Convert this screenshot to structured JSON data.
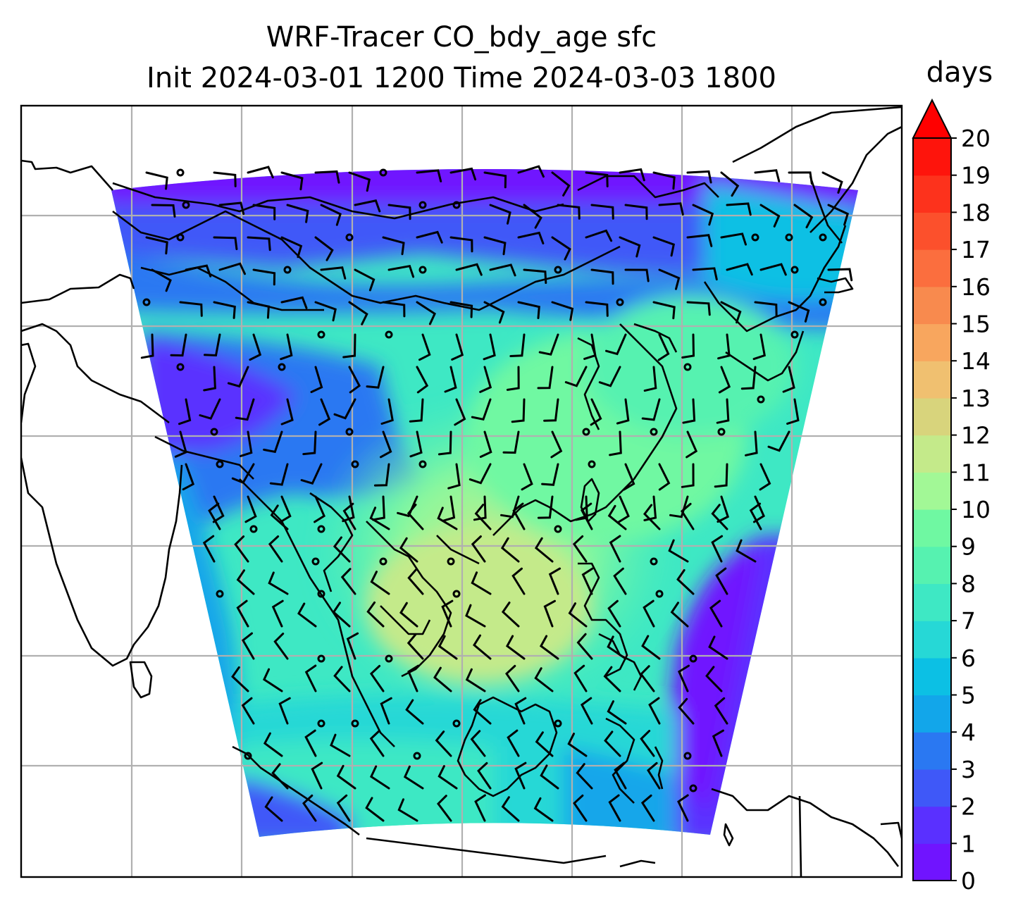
{
  "title": {
    "line1": "WRF-Tracer CO_bdy_age sfc",
    "line2": "Init 2024-03-01 1200 Time 2024-03-03 1800"
  },
  "colorbar": {
    "unit": "days",
    "min": 0,
    "max": 20,
    "step": 1,
    "extend": "max",
    "ticks": [
      "0",
      "1",
      "2",
      "3",
      "4",
      "5",
      "6",
      "7",
      "8",
      "9",
      "10",
      "11",
      "12",
      "13",
      "14",
      "15",
      "16",
      "17",
      "18",
      "19",
      "20"
    ],
    "colors": [
      "#7014ff",
      "#5a30ff",
      "#3f58f8",
      "#2a78f2",
      "#12a6ea",
      "#0cc0e4",
      "#26d8d6",
      "#3ee8c4",
      "#56f2b0",
      "#6ff8a2",
      "#a2f896",
      "#c4ea8a",
      "#d8d47c",
      "#f0c070",
      "#f8a65e",
      "#f88a4e",
      "#fb6e3e",
      "#fc502c",
      "#fd321c",
      "#fe140c"
    ],
    "extend_color": "#ff0000"
  },
  "map": {
    "grid": "on",
    "field": "CO_bdy_age",
    "level": "sfc",
    "wind": "barbs"
  }
}
